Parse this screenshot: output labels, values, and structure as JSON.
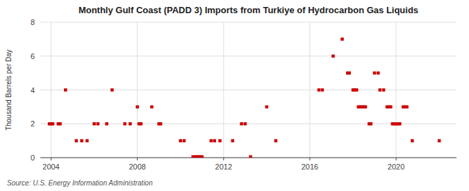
{
  "chart_data": {
    "type": "scatter",
    "title": "Monthly Gulf Coast (PADD 3) Imports from Turkiye of Hydrocarbon Gas Liquids",
    "ylabel": "Thousand Barrels per Day",
    "annotation": "Source: U.S. Energy Information Administration",
    "color": "#cc0000",
    "marker": "square",
    "grid": true,
    "xlim": [
      2003.5,
      2022.8
    ],
    "xticks": [
      2004,
      2008,
      2012,
      2016,
      2020
    ],
    "ylim": [
      0,
      8
    ],
    "yticks": [
      0,
      2,
      4,
      6,
      8
    ],
    "x": [
      2003.92,
      2004.0,
      2004.08,
      2004.33,
      2004.42,
      2004.67,
      2005.17,
      2005.42,
      2005.67,
      2006.0,
      2006.17,
      2006.58,
      2006.83,
      2007.42,
      2007.67,
      2008.0,
      2008.08,
      2008.17,
      2008.67,
      2009.0,
      2009.08,
      2010.0,
      2010.17,
      2010.58,
      2010.67,
      2010.75,
      2010.83,
      2010.92,
      2011.0,
      2011.42,
      2011.58,
      2011.83,
      2012.42,
      2012.83,
      2013.0,
      2013.25,
      2014.0,
      2014.42,
      2016.42,
      2016.58,
      2017.08,
      2017.5,
      2017.75,
      2017.83,
      2018.0,
      2018.08,
      2018.17,
      2018.25,
      2018.33,
      2018.42,
      2018.5,
      2018.58,
      2018.75,
      2018.83,
      2019.0,
      2019.17,
      2019.25,
      2019.42,
      2019.58,
      2019.67,
      2019.75,
      2019.83,
      2019.92,
      2020.0,
      2020.08,
      2020.17,
      2020.33,
      2020.42,
      2020.5,
      2020.75,
      2022.0
    ],
    "values": [
      2,
      2,
      2,
      2,
      2,
      4,
      1,
      1,
      1,
      2,
      2,
      2,
      4,
      2,
      2,
      3,
      2,
      2,
      3,
      2,
      2,
      1,
      1,
      0.05,
      0.05,
      0.05,
      0.05,
      0.05,
      0.05,
      1,
      1,
      1,
      1,
      2,
      2,
      0.05,
      3,
      1,
      4,
      4,
      6,
      7,
      5,
      5,
      4,
      4,
      4,
      3,
      3,
      3,
      3,
      3,
      2,
      2,
      5,
      5,
      4,
      4,
      3,
      3,
      3,
      2,
      2,
      2,
      2,
      2,
      3,
      3,
      3,
      1,
      1
    ]
  }
}
